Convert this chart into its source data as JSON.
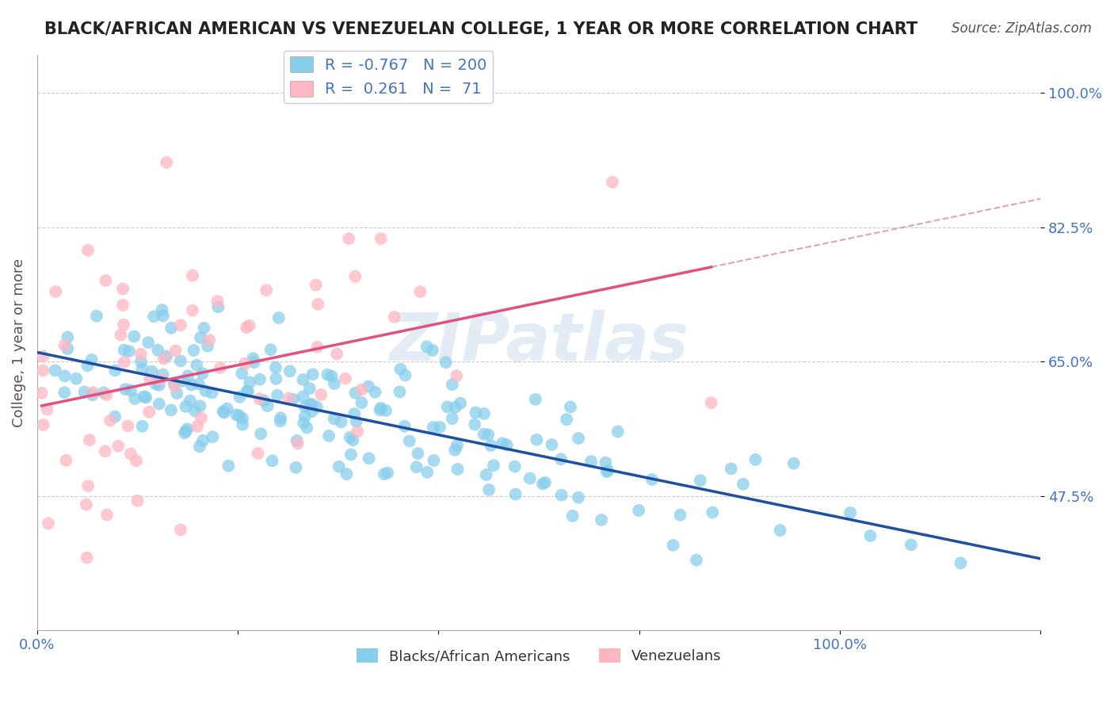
{
  "title": "BLACK/AFRICAN AMERICAN VS VENEZUELAN COLLEGE, 1 YEAR OR MORE CORRELATION CHART",
  "source": "Source: ZipAtlas.com",
  "xlabel": "",
  "ylabel": "College, 1 year or more",
  "xlim": [
    0.0,
    1.0
  ],
  "ylim": [
    0.3,
    1.05
  ],
  "yticks": [
    0.475,
    0.65,
    0.825,
    1.0
  ],
  "ytick_labels": [
    "47.5%",
    "65.0%",
    "82.5%",
    "100.0%"
  ],
  "xtick_labels": [
    "0.0%",
    "100.0%"
  ],
  "xticks": [
    0.0,
    1.0
  ],
  "blue_color": "#87CEEB",
  "blue_line_color": "#1E4FA0",
  "pink_color": "#FFB6C1",
  "pink_line_color": "#E05080",
  "pink_dashed_color": "#E8A0B0",
  "r_blue": -0.767,
  "n_blue": 200,
  "r_pink": 0.261,
  "n_pink": 71,
  "legend_label_blue": "Blacks/African Americans",
  "legend_label_pink": "Venezuelans",
  "watermark": "ZIPatlas",
  "background_color": "#ffffff",
  "grid_color": "#cccccc",
  "title_color": "#222222",
  "label_color": "#4472C4",
  "source_color": "#555555",
  "blue_seed": 42,
  "pink_seed": 7
}
